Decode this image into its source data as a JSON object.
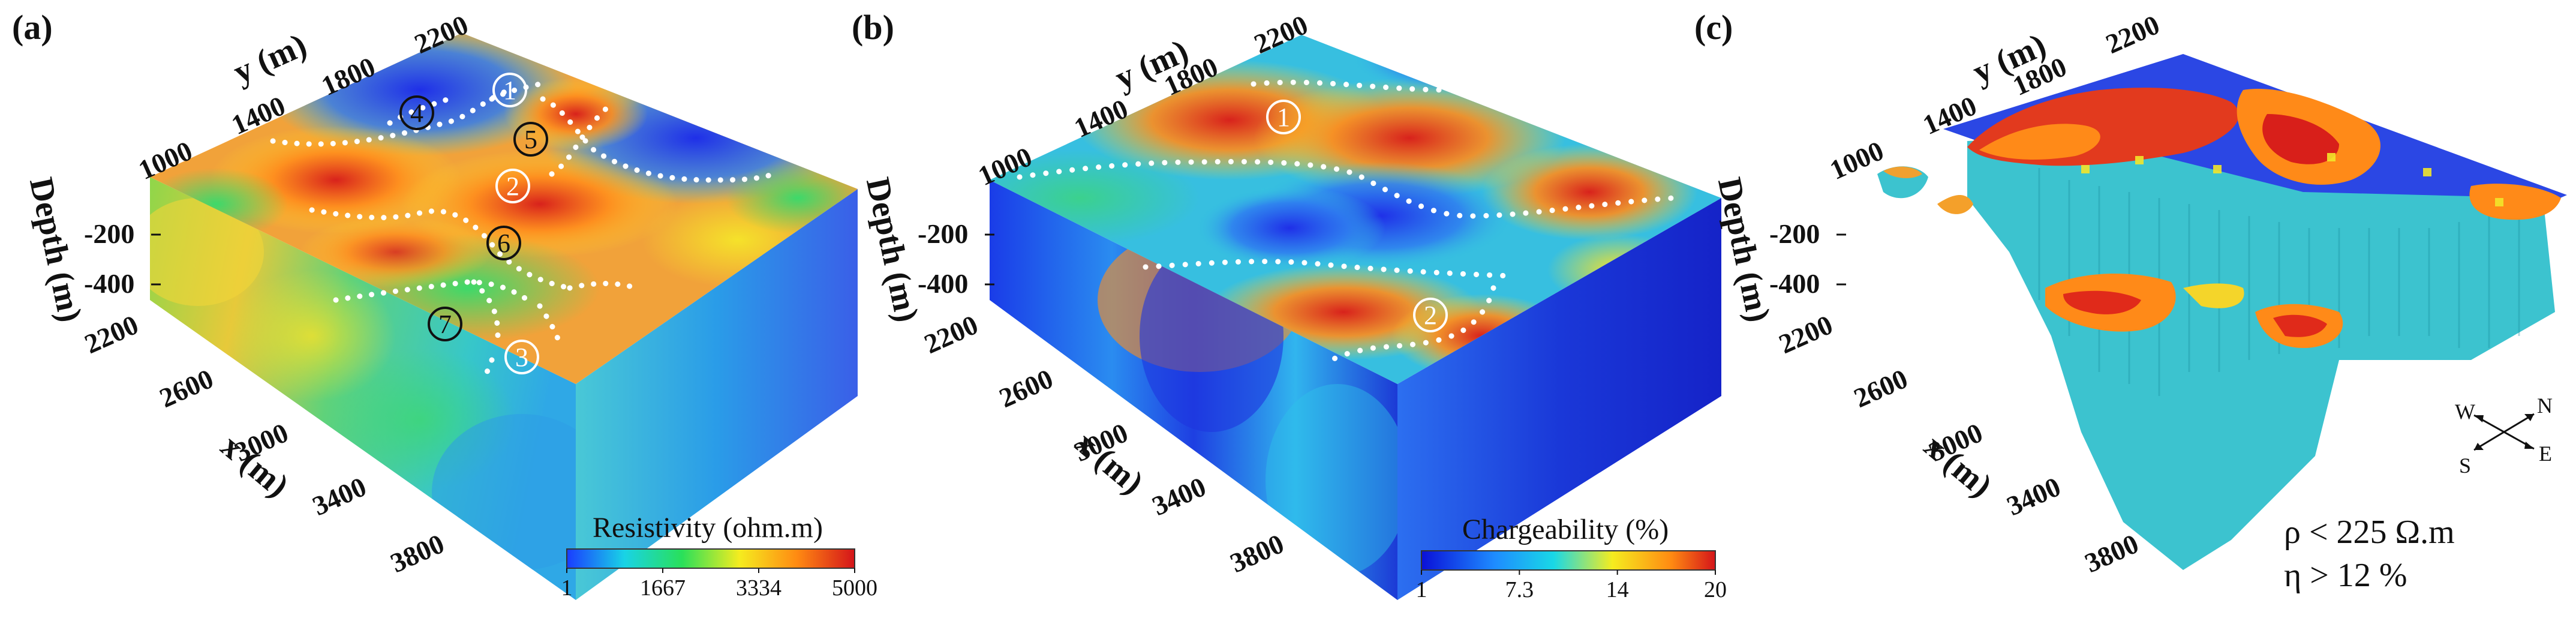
{
  "panels": [
    {
      "id": "a",
      "label": "(a)",
      "y_axis_label": "y (m)",
      "y_ticks": [
        "1000",
        "1400",
        "1800",
        "2200"
      ],
      "x_axis_label": "x (m)",
      "x_ticks": [
        "2200",
        "2600",
        "3000",
        "3400",
        "3800"
      ],
      "depth_label": "Depth (m)",
      "depth_ticks": [
        "-200",
        "-400"
      ],
      "colorbar": {
        "title": "Resistivity (ohm.m)",
        "ticks": [
          "1",
          "1667",
          "3334",
          "5000"
        ],
        "colors": [
          "#1a3cff",
          "#19d3e6",
          "#29e05a",
          "#f5ec1f",
          "#ff8a12",
          "#d4141a"
        ]
      },
      "markers": [
        {
          "text": "1",
          "style": "white"
        },
        {
          "text": "4",
          "style": "dark"
        },
        {
          "text": "5",
          "style": "dark"
        },
        {
          "text": "2",
          "style": "white"
        },
        {
          "text": "6",
          "style": "dark"
        },
        {
          "text": "7",
          "style": "dark"
        },
        {
          "text": "3",
          "style": "white"
        }
      ]
    },
    {
      "id": "b",
      "label": "(b)",
      "y_axis_label": "y (m)",
      "y_ticks": [
        "1000",
        "1400",
        "1800",
        "2200"
      ],
      "x_axis_label": "x (m)",
      "x_ticks": [
        "2200",
        "2600",
        "3000",
        "3400",
        "3800"
      ],
      "depth_label": "Depth (m)",
      "depth_ticks": [
        "-200",
        "-400"
      ],
      "colorbar": {
        "title": "Chargeability (%)",
        "ticks": [
          "1",
          "7.3",
          "14",
          "20"
        ],
        "colors": [
          "#0a10d8",
          "#1e8cff",
          "#19d8e6",
          "#f5ec1f",
          "#ff8a12",
          "#d4141a"
        ]
      },
      "markers": [
        {
          "text": "1",
          "style": "white"
        },
        {
          "text": "2",
          "style": "white"
        }
      ]
    },
    {
      "id": "c",
      "label": "(c)",
      "y_axis_label": "y (m)",
      "y_ticks": [
        "1000",
        "1400",
        "1800",
        "2200"
      ],
      "x_axis_label": "x (m)",
      "x_ticks": [
        "2200",
        "2600",
        "3000",
        "3400",
        "3800"
      ],
      "depth_label": "Depth (m)",
      "depth_ticks": [
        "-200",
        "-400"
      ],
      "thresholds": [
        "ρ < 225 Ω.m",
        "η > 12  %"
      ],
      "compass": {
        "n": "N",
        "s": "S",
        "e": "E",
        "w": "W"
      }
    }
  ],
  "colors": {
    "blue": "#1f3fe0",
    "cyan": "#20c8dd",
    "green": "#4fd66a",
    "yellow": "#f2e62a",
    "orange": "#ff8a18",
    "red": "#cf1d1f",
    "teal": "#3cc3cf"
  }
}
